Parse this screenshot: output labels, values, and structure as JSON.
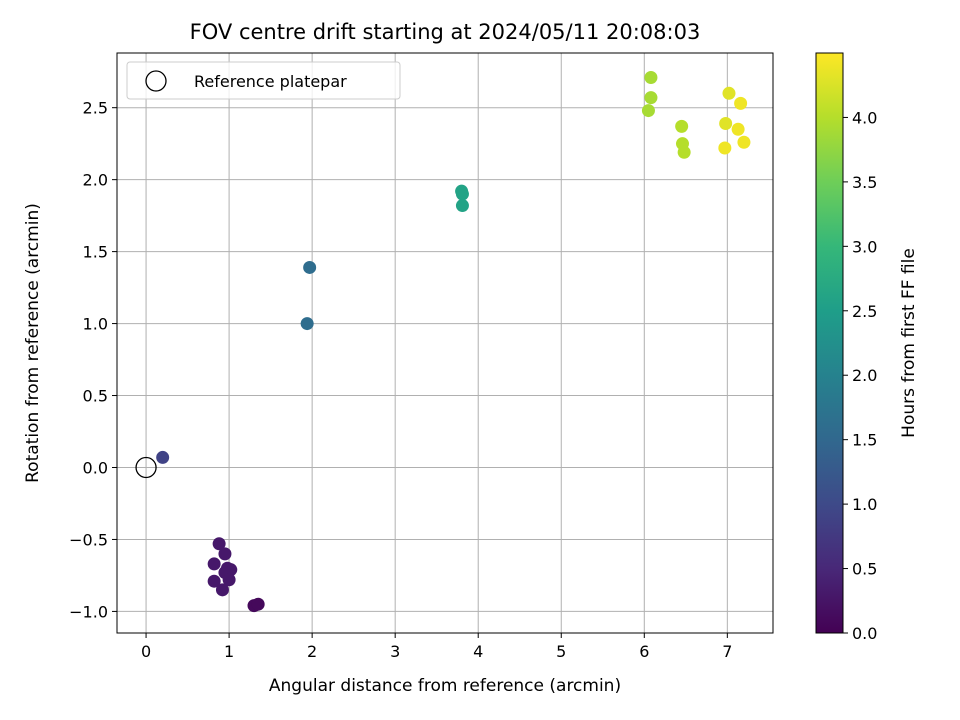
{
  "chart_data": {
    "type": "scatter",
    "title": "FOV centre drift starting at 2024/05/11 20:08:03",
    "xlabel": "Angular distance from reference (arcmin)",
    "ylabel": "Rotation from reference (arcmin)",
    "xlim": [
      -0.35,
      7.55
    ],
    "ylim": [
      -1.15,
      2.88
    ],
    "xticks": [
      "0",
      "1",
      "2",
      "3",
      "4",
      "5",
      "6",
      "7"
    ],
    "yticks": [
      "−1.0",
      "−0.5",
      "0.0",
      "0.5",
      "1.0",
      "1.5",
      "2.0",
      "2.5"
    ],
    "grid": true,
    "legend": {
      "placement": "top-left",
      "entries": [
        "Reference platepar"
      ]
    },
    "reference_point": {
      "x": 0.0,
      "y": 0.0
    },
    "colorbar": {
      "label": "Hours from first FF file",
      "colormap": "viridis",
      "range": [
        0.0,
        4.5
      ],
      "ticks": [
        "0.0",
        "0.5",
        "1.0",
        "1.5",
        "2.0",
        "2.5",
        "3.0",
        "3.5",
        "4.0"
      ]
    },
    "points": [
      {
        "x": 0.2,
        "y": 0.07,
        "c": 0.9
      },
      {
        "x": 0.88,
        "y": -0.53,
        "c": 0.3
      },
      {
        "x": 0.95,
        "y": -0.6,
        "c": 0.3
      },
      {
        "x": 0.82,
        "y": -0.67,
        "c": 0.3
      },
      {
        "x": 0.98,
        "y": -0.7,
        "c": 0.3
      },
      {
        "x": 1.02,
        "y": -0.71,
        "c": 0.3
      },
      {
        "x": 0.95,
        "y": -0.73,
        "c": 0.3
      },
      {
        "x": 0.82,
        "y": -0.79,
        "c": 0.3
      },
      {
        "x": 1.0,
        "y": -0.78,
        "c": 0.3
      },
      {
        "x": 0.92,
        "y": -0.85,
        "c": 0.3
      },
      {
        "x": 1.3,
        "y": -0.96,
        "c": 0.1
      },
      {
        "x": 1.35,
        "y": -0.95,
        "c": 0.1
      },
      {
        "x": 1.94,
        "y": 1.0,
        "c": 1.6
      },
      {
        "x": 1.97,
        "y": 1.39,
        "c": 1.6
      },
      {
        "x": 3.8,
        "y": 1.92,
        "c": 2.6
      },
      {
        "x": 3.81,
        "y": 1.9,
        "c": 2.6
      },
      {
        "x": 3.81,
        "y": 1.82,
        "c": 2.6
      },
      {
        "x": 6.08,
        "y": 2.71,
        "c": 3.9
      },
      {
        "x": 6.08,
        "y": 2.57,
        "c": 3.9
      },
      {
        "x": 6.05,
        "y": 2.48,
        "c": 3.9
      },
      {
        "x": 6.45,
        "y": 2.37,
        "c": 4.0
      },
      {
        "x": 6.46,
        "y": 2.25,
        "c": 4.0
      },
      {
        "x": 6.48,
        "y": 2.19,
        "c": 4.0
      },
      {
        "x": 7.02,
        "y": 2.6,
        "c": 4.3
      },
      {
        "x": 7.16,
        "y": 2.53,
        "c": 4.4
      },
      {
        "x": 6.98,
        "y": 2.39,
        "c": 4.3
      },
      {
        "x": 7.13,
        "y": 2.35,
        "c": 4.4
      },
      {
        "x": 7.2,
        "y": 2.26,
        "c": 4.4
      },
      {
        "x": 6.97,
        "y": 2.22,
        "c": 4.4
      }
    ]
  }
}
